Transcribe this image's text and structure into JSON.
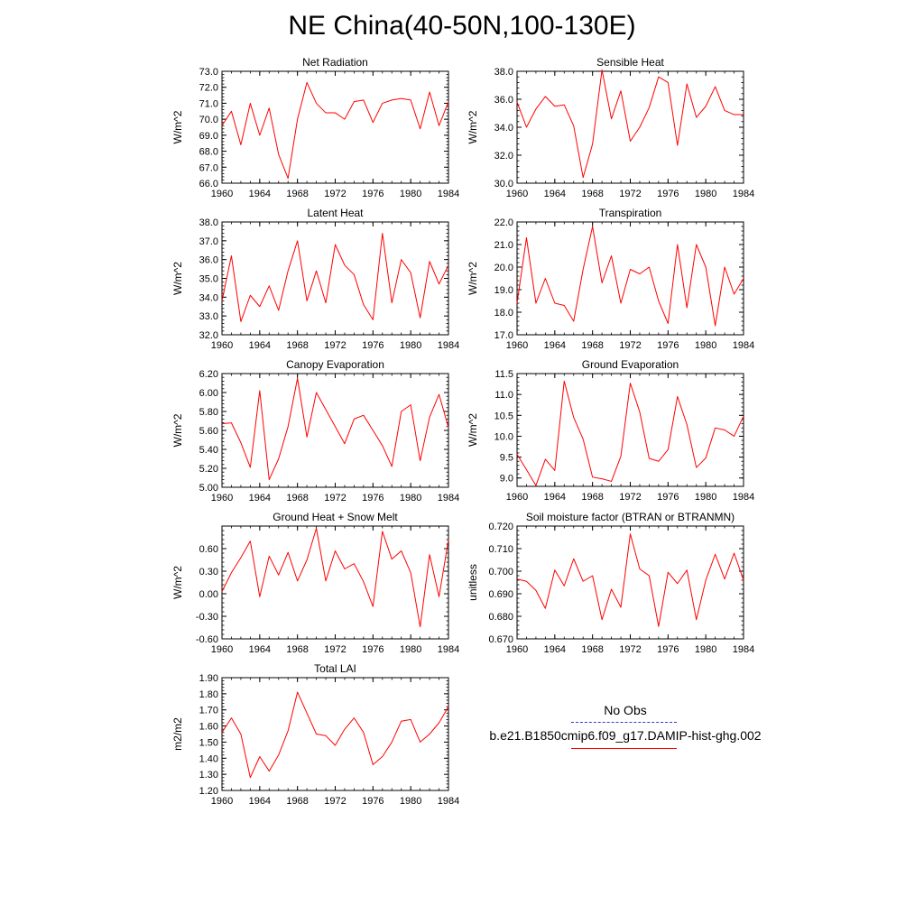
{
  "title": "NE China(40-50N,100-130E)",
  "legend": {
    "entries": [
      {
        "label": "No Obs",
        "color": "#3a3acf",
        "style": "dashed"
      },
      {
        "label": "b.e21.B1850cmip6.f09_g17.DAMIP-hist-ghg.002",
        "color": "#ff0000",
        "style": "solid"
      }
    ]
  },
  "colors": {
    "series": "#ff0000",
    "axis": "#000000"
  },
  "chart_data": [
    {
      "type": "line",
      "title": "Net Radiation",
      "ylabel": "W/m^2",
      "xlim": [
        1960,
        1984
      ],
      "xticks": [
        "1960",
        "1964",
        "1968",
        "1972",
        "1976",
        "1980",
        "1984"
      ],
      "ylim": [
        66,
        73
      ],
      "yticks": [
        "66.0",
        "67.0",
        "68.0",
        "69.0",
        "70.0",
        "71.0",
        "72.0",
        "73.0"
      ],
      "x": [
        1960,
        1961,
        1962,
        1963,
        1964,
        1965,
        1966,
        1967,
        1968,
        1969,
        1970,
        1971,
        1972,
        1973,
        1974,
        1975,
        1976,
        1977,
        1978,
        1979,
        1980,
        1981,
        1982,
        1983,
        1984
      ],
      "y": [
        69.6,
        70.5,
        68.4,
        71.0,
        69.0,
        70.7,
        67.8,
        66.3,
        70.0,
        72.3,
        71.0,
        70.4,
        70.4,
        70.0,
        71.1,
        71.2,
        69.8,
        71.0,
        71.2,
        71.3,
        71.2,
        69.4,
        71.7,
        69.6,
        71.1
      ]
    },
    {
      "type": "line",
      "title": "Sensible Heat",
      "ylabel": "W/m^2",
      "xlim": [
        1960,
        1984
      ],
      "xticks": [
        "1960",
        "1964",
        "1968",
        "1972",
        "1976",
        "1980",
        "1984"
      ],
      "ylim": [
        30,
        38
      ],
      "yticks": [
        "30.0",
        "32.0",
        "34.0",
        "36.0",
        "38.0"
      ],
      "x": [
        1960,
        1961,
        1962,
        1963,
        1964,
        1965,
        1966,
        1967,
        1968,
        1969,
        1970,
        1971,
        1972,
        1973,
        1974,
        1975,
        1976,
        1977,
        1978,
        1979,
        1980,
        1981,
        1982,
        1983,
        1984
      ],
      "y": [
        35.8,
        34.0,
        35.3,
        36.2,
        35.5,
        35.6,
        34.1,
        30.4,
        32.8,
        38.1,
        34.6,
        36.6,
        33.0,
        34.0,
        35.4,
        37.6,
        37.2,
        32.7,
        37.1,
        34.7,
        35.5,
        36.9,
        35.2,
        34.9,
        34.9
      ]
    },
    {
      "type": "line",
      "title": "Latent Heat",
      "ylabel": "W/m^2",
      "xlim": [
        1960,
        1984
      ],
      "xticks": [
        "1960",
        "1964",
        "1968",
        "1972",
        "1976",
        "1980",
        "1984"
      ],
      "ylim": [
        32,
        38
      ],
      "yticks": [
        "32.0",
        "33.0",
        "34.0",
        "35.0",
        "36.0",
        "37.0",
        "38.0"
      ],
      "x": [
        1960,
        1961,
        1962,
        1963,
        1964,
        1965,
        1966,
        1967,
        1968,
        1969,
        1970,
        1971,
        1972,
        1973,
        1974,
        1975,
        1976,
        1977,
        1978,
        1979,
        1980,
        1981,
        1982,
        1983,
        1984
      ],
      "y": [
        33.8,
        36.2,
        32.7,
        34.1,
        33.5,
        34.6,
        33.3,
        35.4,
        37.0,
        33.8,
        35.4,
        33.7,
        36.8,
        35.7,
        35.2,
        33.6,
        32.8,
        37.4,
        33.7,
        36.0,
        35.3,
        32.9,
        35.9,
        34.7,
        35.7
      ]
    },
    {
      "type": "line",
      "title": "Transpiration",
      "ylabel": "W/m^2",
      "xlim": [
        1960,
        1984
      ],
      "xticks": [
        "1960",
        "1964",
        "1968",
        "1972",
        "1976",
        "1980",
        "1984"
      ],
      "ylim": [
        17,
        22
      ],
      "yticks": [
        "17.0",
        "18.0",
        "19.0",
        "20.0",
        "21.0",
        "22.0"
      ],
      "x": [
        1960,
        1961,
        1962,
        1963,
        1964,
        1965,
        1966,
        1967,
        1968,
        1969,
        1970,
        1971,
        1972,
        1973,
        1974,
        1975,
        1976,
        1977,
        1978,
        1979,
        1980,
        1981,
        1982,
        1983,
        1984
      ],
      "y": [
        18.4,
        21.3,
        18.4,
        19.5,
        18.4,
        18.3,
        17.6,
        19.9,
        21.8,
        19.3,
        20.5,
        18.4,
        19.9,
        19.7,
        20.0,
        18.5,
        17.5,
        21.0,
        18.2,
        21.0,
        20.0,
        17.4,
        20.0,
        18.8,
        19.5
      ]
    },
    {
      "type": "line",
      "title": "Canopy Evaporation",
      "ylabel": "W/m^2",
      "xlim": [
        1960,
        1984
      ],
      "xticks": [
        "1960",
        "1964",
        "1968",
        "1972",
        "1976",
        "1980",
        "1984"
      ],
      "ylim": [
        5.0,
        6.2
      ],
      "yticks": [
        "5.00",
        "5.20",
        "5.40",
        "5.60",
        "5.80",
        "6.00",
        "6.20"
      ],
      "x": [
        1960,
        1961,
        1962,
        1963,
        1964,
        1965,
        1966,
        1967,
        1968,
        1969,
        1970,
        1971,
        1972,
        1973,
        1974,
        1975,
        1976,
        1977,
        1978,
        1979,
        1980,
        1981,
        1982,
        1983,
        1984
      ],
      "y": [
        5.67,
        5.68,
        5.47,
        5.21,
        6.02,
        5.08,
        5.3,
        5.64,
        6.15,
        5.53,
        6.0,
        5.82,
        5.64,
        5.46,
        5.72,
        5.76,
        5.6,
        5.44,
        5.22,
        5.8,
        5.87,
        5.28,
        5.74,
        5.98,
        5.63
      ]
    },
    {
      "type": "line",
      "title": "Ground Evaporation",
      "ylabel": "W/m^2",
      "xlim": [
        1960,
        1984
      ],
      "xticks": [
        "1960",
        "1964",
        "1968",
        "1972",
        "1976",
        "1980",
        "1984"
      ],
      "ylim": [
        8.8,
        11.5
      ],
      "yticks": [
        "9.0",
        "9.5",
        "10.0",
        "10.5",
        "11.0",
        "11.5"
      ],
      "x": [
        1960,
        1961,
        1962,
        1963,
        1964,
        1965,
        1966,
        1967,
        1968,
        1969,
        1970,
        1971,
        1972,
        1973,
        1974,
        1975,
        1976,
        1977,
        1978,
        1979,
        1980,
        1981,
        1982,
        1983,
        1984
      ],
      "y": [
        9.57,
        9.2,
        8.82,
        9.45,
        9.18,
        11.32,
        10.45,
        9.93,
        9.02,
        8.98,
        8.92,
        9.52,
        11.27,
        10.58,
        9.47,
        9.4,
        9.68,
        10.95,
        10.28,
        9.25,
        9.48,
        10.2,
        10.15,
        10.0,
        10.48
      ]
    },
    {
      "type": "line",
      "title": "Ground Heat + Snow Melt",
      "ylabel": "W/m^2",
      "xlim": [
        1960,
        1984
      ],
      "xticks": [
        "1960",
        "1964",
        "1968",
        "1972",
        "1976",
        "1980",
        "1984"
      ],
      "ylim": [
        -0.6,
        0.9
      ],
      "yticks": [
        "-0.60",
        "-0.30",
        "0.00",
        "0.30",
        "0.60"
      ],
      "x": [
        1960,
        1961,
        1962,
        1963,
        1964,
        1965,
        1966,
        1967,
        1968,
        1969,
        1970,
        1971,
        1972,
        1973,
        1974,
        1975,
        1976,
        1977,
        1978,
        1979,
        1980,
        1981,
        1982,
        1983,
        1984
      ],
      "y": [
        0.03,
        0.28,
        0.48,
        0.7,
        -0.04,
        0.5,
        0.25,
        0.55,
        0.17,
        0.45,
        0.87,
        0.17,
        0.57,
        0.33,
        0.4,
        0.16,
        -0.17,
        0.83,
        0.46,
        0.57,
        0.28,
        -0.44,
        0.52,
        -0.04,
        0.72
      ]
    },
    {
      "type": "line",
      "title": "Soil moisture factor (BTRAN or BTRANMN)",
      "ylabel": "unitless",
      "xlim": [
        1960,
        1984
      ],
      "xticks": [
        "1960",
        "1964",
        "1968",
        "1972",
        "1976",
        "1980",
        "1984"
      ],
      "ylim": [
        0.67,
        0.72
      ],
      "yticks": [
        "0.670",
        "0.680",
        "0.690",
        "0.700",
        "0.710",
        "0.720"
      ],
      "x": [
        1960,
        1961,
        1962,
        1963,
        1964,
        1965,
        1966,
        1967,
        1968,
        1969,
        1970,
        1971,
        1972,
        1973,
        1974,
        1975,
        1976,
        1977,
        1978,
        1979,
        1980,
        1981,
        1982,
        1983,
        1984
      ],
      "y": [
        0.6965,
        0.6955,
        0.6915,
        0.6835,
        0.7005,
        0.6935,
        0.7055,
        0.6955,
        0.698,
        0.6785,
        0.692,
        0.684,
        0.7165,
        0.701,
        0.698,
        0.6755,
        0.6995,
        0.6945,
        0.7005,
        0.6785,
        0.696,
        0.7075,
        0.6965,
        0.708,
        0.696
      ]
    },
    {
      "type": "line",
      "title": "Total LAI",
      "ylabel": "m2/m2",
      "xlim": [
        1960,
        1984
      ],
      "xticks": [
        "1960",
        "1964",
        "1968",
        "1972",
        "1976",
        "1980",
        "1984"
      ],
      "ylim": [
        1.2,
        1.9
      ],
      "yticks": [
        "1.20",
        "1.30",
        "1.40",
        "1.50",
        "1.60",
        "1.70",
        "1.80",
        "1.90"
      ],
      "x": [
        1960,
        1961,
        1962,
        1963,
        1964,
        1965,
        1966,
        1967,
        1968,
        1969,
        1970,
        1971,
        1972,
        1973,
        1974,
        1975,
        1976,
        1977,
        1978,
        1979,
        1980,
        1981,
        1982,
        1983,
        1984
      ],
      "y": [
        1.56,
        1.65,
        1.55,
        1.28,
        1.41,
        1.32,
        1.42,
        1.57,
        1.81,
        1.68,
        1.55,
        1.54,
        1.48,
        1.58,
        1.65,
        1.56,
        1.36,
        1.41,
        1.5,
        1.63,
        1.64,
        1.5,
        1.55,
        1.62,
        1.72
      ]
    }
  ]
}
